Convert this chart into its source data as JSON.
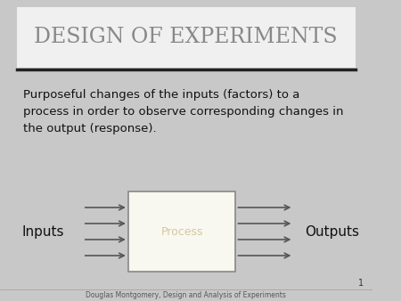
{
  "title": "DESIGN OF EXPERIMENTS",
  "title_color": "#888888",
  "bg_color": "#c8c8c8",
  "header_bg": "#f0f0f0",
  "body_text": "Purposeful changes of the inputs (factors) to a\nprocess in order to observe corresponding changes in\nthe output (response).",
  "box_label": "Process",
  "box_label_color": "#d4c8a0",
  "inputs_label": "Inputs",
  "outputs_label": "Outputs",
  "footer_text": "Douglas Montgomery, Design and Analysis of Experiments",
  "page_number": "1",
  "arrow_color": "#555555",
  "box_border_color": "#888888",
  "box_fill": "#f8f8f0",
  "line_color": "#222222",
  "body_text_color": "#111111",
  "footer_color": "#555555",
  "page_num_color": "#333333"
}
